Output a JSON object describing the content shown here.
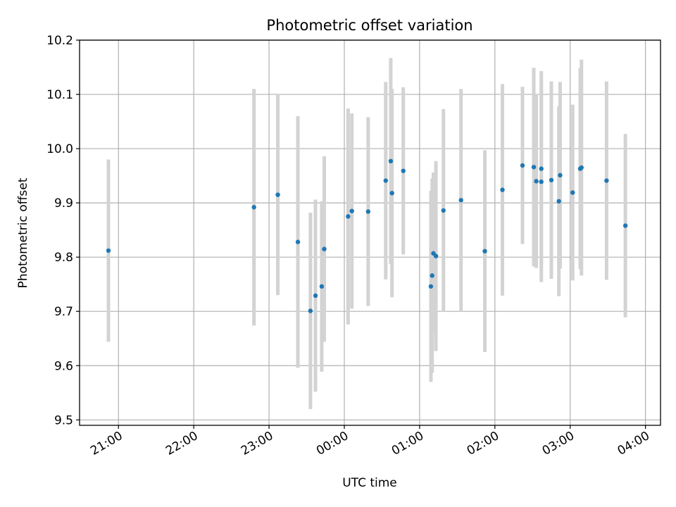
{
  "chart_data": {
    "type": "scatter",
    "title": "Photometric offset variation",
    "xlabel": "UTC time",
    "ylabel": "Photometric offset",
    "x_tick_labels": [
      "21:00",
      "22:00",
      "23:00",
      "00:00",
      "01:00",
      "02:00",
      "03:00",
      "04:00"
    ],
    "y_tick_labels": [
      "9.5",
      "9.6",
      "9.7",
      "9.8",
      "9.9",
      "10.0",
      "10.1",
      "10.2"
    ],
    "xlim": [
      "20:29",
      "04:12"
    ],
    "ylim": [
      9.49,
      10.2
    ],
    "grid": true,
    "colors": {
      "point": "#1f77b4",
      "errorbar": "#d3d3d3",
      "grid": "#b0b0b0"
    },
    "series": [
      {
        "x": [
          "20:52",
          "22:48",
          "23:07",
          "23:23",
          "23:33",
          "23:37",
          "23:42",
          "23:44",
          "00:03",
          "00:06",
          "00:19",
          "00:33",
          "00:37",
          "00:38",
          "00:47",
          "01:09",
          "01:10",
          "01:11",
          "01:13",
          "01:19",
          "01:33",
          "01:52",
          "02:06",
          "02:22",
          "02:31",
          "02:33",
          "02:37",
          "02:37",
          "02:45",
          "02:51",
          "02:52",
          "03:02",
          "03:08",
          "03:09",
          "03:29",
          "03:44"
        ],
        "y": [
          9.812,
          9.892,
          9.915,
          9.828,
          9.701,
          9.729,
          9.746,
          9.815,
          9.875,
          9.885,
          9.884,
          9.941,
          9.977,
          9.918,
          9.959,
          9.746,
          9.766,
          9.807,
          9.802,
          9.886,
          9.905,
          9.811,
          9.924,
          9.969,
          9.966,
          9.94,
          9.939,
          9.963,
          9.942,
          9.903,
          9.951,
          9.919,
          9.963,
          9.965,
          9.941,
          9.858
        ],
        "yerr": [
          0.168,
          0.218,
          0.185,
          0.232,
          0.181,
          0.177,
          0.157,
          0.171,
          0.199,
          0.18,
          0.174,
          0.182,
          0.19,
          0.192,
          0.154,
          0.176,
          0.179,
          0.149,
          0.175,
          0.187,
          0.205,
          0.186,
          0.195,
          0.145,
          0.183,
          0.16,
          0.185,
          0.18,
          0.182,
          0.175,
          0.172,
          0.162,
          0.185,
          0.199,
          0.183,
          0.169
        ]
      }
    ]
  }
}
